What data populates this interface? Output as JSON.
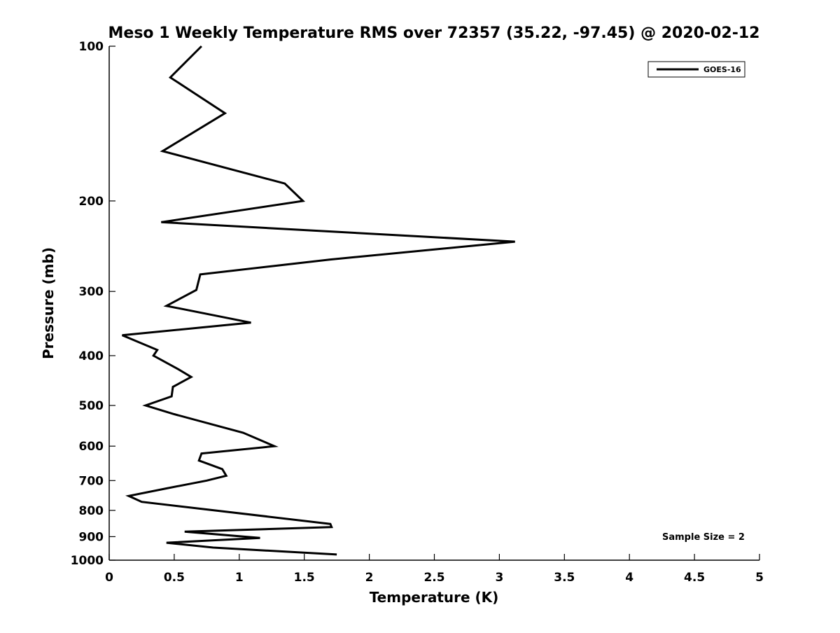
{
  "chart_data": {
    "type": "line",
    "title": "Meso 1 Weekly Temperature RMS over 72357 (35.22, -97.45) @ 2020-02-12",
    "xlabel": "Temperature (K)",
    "ylabel": "Pressure (mb)",
    "xlim": [
      0,
      5
    ],
    "ylim": [
      100,
      1000
    ],
    "y_scale": "log",
    "y_reversed": true,
    "grid": false,
    "legend_position": "top-right",
    "x_ticks": [
      "0",
      "0.5",
      "1",
      "1.5",
      "2",
      "2.5",
      "3",
      "3.5",
      "4",
      "4.5",
      "5"
    ],
    "y_ticks": [
      "100",
      "200",
      "300",
      "400",
      "500",
      "600",
      "700",
      "800",
      "900",
      "1000"
    ],
    "series": [
      {
        "name": "GOES-16",
        "color": "#000000",
        "points": [
          {
            "x": 0.71,
            "y": 100
          },
          {
            "x": 0.47,
            "y": 115
          },
          {
            "x": 0.89,
            "y": 135
          },
          {
            "x": 0.41,
            "y": 160
          },
          {
            "x": 1.35,
            "y": 185
          },
          {
            "x": 1.49,
            "y": 200
          },
          {
            "x": 0.4,
            "y": 220
          },
          {
            "x": 3.12,
            "y": 240
          },
          {
            "x": 1.7,
            "y": 260
          },
          {
            "x": 0.7,
            "y": 278
          },
          {
            "x": 0.67,
            "y": 298
          },
          {
            "x": 0.44,
            "y": 320
          },
          {
            "x": 1.09,
            "y": 345
          },
          {
            "x": 0.1,
            "y": 365
          },
          {
            "x": 0.37,
            "y": 390
          },
          {
            "x": 0.34,
            "y": 400
          },
          {
            "x": 0.53,
            "y": 425
          },
          {
            "x": 0.63,
            "y": 440
          },
          {
            "x": 0.49,
            "y": 460
          },
          {
            "x": 0.48,
            "y": 480
          },
          {
            "x": 0.28,
            "y": 500
          },
          {
            "x": 0.5,
            "y": 520
          },
          {
            "x": 1.03,
            "y": 565
          },
          {
            "x": 1.27,
            "y": 600
          },
          {
            "x": 0.71,
            "y": 620
          },
          {
            "x": 0.69,
            "y": 640
          },
          {
            "x": 0.87,
            "y": 665
          },
          {
            "x": 0.9,
            "y": 685
          },
          {
            "x": 0.75,
            "y": 700
          },
          {
            "x": 0.44,
            "y": 725
          },
          {
            "x": 0.15,
            "y": 750
          },
          {
            "x": 0.25,
            "y": 770
          },
          {
            "x": 1.7,
            "y": 850
          },
          {
            "x": 1.71,
            "y": 862
          },
          {
            "x": 0.58,
            "y": 880
          },
          {
            "x": 1.16,
            "y": 905
          },
          {
            "x": 0.44,
            "y": 925
          },
          {
            "x": 0.8,
            "y": 945
          },
          {
            "x": 1.75,
            "y": 975
          }
        ]
      }
    ],
    "legend": [
      {
        "label": "GOES-16",
        "color": "#000000"
      }
    ],
    "annotations": [
      {
        "text": "Sample Size = 2"
      }
    ]
  }
}
